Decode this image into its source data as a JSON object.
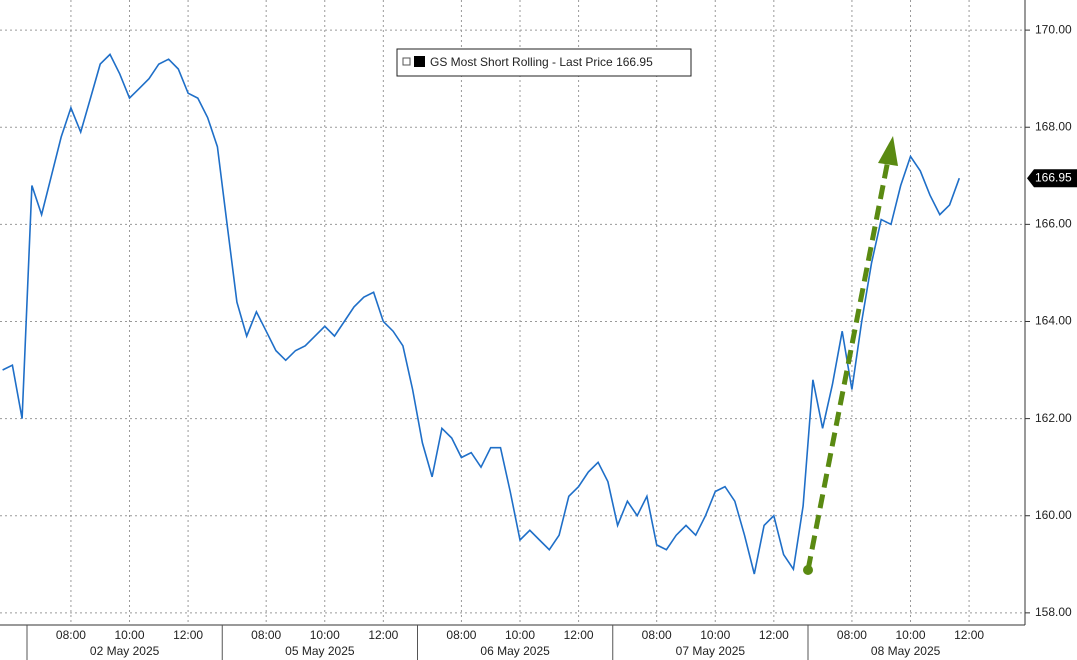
{
  "chart_data": {
    "type": "line",
    "series_name": "GS Most Short Rolling - Last Price",
    "last_price": 166.95,
    "color": "#1f6fc8",
    "grid": true,
    "ylim": [
      157.75,
      170.62
    ],
    "yticks": [
      {
        "value": 158,
        "label": "158.00"
      },
      {
        "value": 160,
        "label": "160.00"
      },
      {
        "value": 162,
        "label": "162.00"
      },
      {
        "value": 164,
        "label": "164.00"
      },
      {
        "value": 166,
        "label": "166.00"
      },
      {
        "value": 168,
        "label": "168.00"
      },
      {
        "value": 170,
        "label": "170.00"
      }
    ],
    "days": [
      {
        "date": null,
        "categories": [
          null,
          null,
          null
        ],
        "values": [
          163.0,
          163.1,
          162.0
        ]
      },
      {
        "date": "02 May 2025",
        "categories": [
          null,
          null,
          null,
          null,
          "08:00",
          null,
          null,
          null,
          null,
          null,
          "10:00",
          null,
          null,
          null,
          null,
          null,
          "12:00",
          null,
          null,
          null
        ],
        "values": [
          166.8,
          166.2,
          167.0,
          167.8,
          168.4,
          167.9,
          168.6,
          169.3,
          169.5,
          169.1,
          168.6,
          168.8,
          169.0,
          169.3,
          169.4,
          169.2,
          168.7,
          168.6,
          168.2,
          167.6
        ]
      },
      {
        "date": "05 May 2025",
        "categories": [
          null,
          null,
          null,
          null,
          "08:00",
          null,
          null,
          null,
          null,
          null,
          "10:00",
          null,
          null,
          null,
          null,
          null,
          "12:00",
          null,
          null,
          null
        ],
        "values": [
          166.0,
          164.4,
          163.7,
          164.2,
          163.8,
          163.4,
          163.2,
          163.4,
          163.5,
          163.7,
          163.9,
          163.7,
          164.0,
          164.3,
          164.5,
          164.6,
          164.0,
          163.8,
          163.5,
          162.6
        ]
      },
      {
        "date": "06 May 2025",
        "categories": [
          null,
          null,
          null,
          null,
          "08:00",
          null,
          null,
          null,
          null,
          null,
          "10:00",
          null,
          null,
          null,
          null,
          null,
          "12:00",
          null,
          null,
          null
        ],
        "values": [
          161.5,
          160.8,
          161.8,
          161.6,
          161.2,
          161.3,
          161.0,
          161.4,
          161.4,
          160.5,
          159.5,
          159.7,
          159.5,
          159.3,
          159.6,
          160.4,
          160.6,
          160.9,
          161.1,
          160.7
        ]
      },
      {
        "date": "07 May 2025",
        "categories": [
          null,
          null,
          null,
          null,
          "08:00",
          null,
          null,
          null,
          null,
          null,
          "10:00",
          null,
          null,
          null,
          null,
          null,
          "12:00",
          null,
          null,
          null
        ],
        "values": [
          159.8,
          160.3,
          160.0,
          160.4,
          159.4,
          159.3,
          159.6,
          159.8,
          159.6,
          160.0,
          160.5,
          160.6,
          160.3,
          159.6,
          158.8,
          159.8,
          160.0,
          159.2,
          158.9,
          160.2
        ]
      },
      {
        "date": "08 May 2025",
        "categories": [
          null,
          null,
          null,
          null,
          "08:00",
          null,
          null,
          null,
          null,
          null,
          "10:00",
          null,
          null,
          null,
          null,
          null,
          "12:00"
        ],
        "values": [
          162.8,
          161.8,
          162.7,
          163.8,
          162.6,
          164.0,
          165.2,
          166.1,
          166.0,
          166.8,
          167.4,
          167.1,
          166.6,
          166.2,
          166.4,
          166.95,
          null
        ]
      }
    ]
  }
}
